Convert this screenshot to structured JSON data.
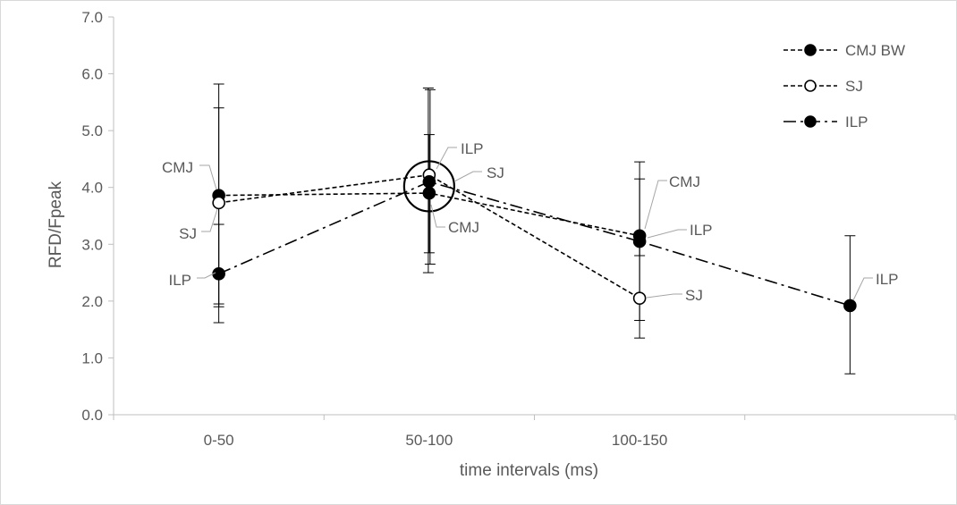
{
  "chart_data": {
    "type": "line",
    "title": "",
    "xlabel": "time intervals (ms)",
    "ylabel": "RFD/Fpeak",
    "categories": [
      "0-50",
      "50-100",
      "100-150",
      ""
    ],
    "ylim": [
      0,
      7
    ],
    "yticks": [
      "0.0",
      "1.0",
      "2.0",
      "3.0",
      "4.0",
      "5.0",
      "6.0",
      "7.0"
    ],
    "series": [
      {
        "name": "CMJ BW",
        "short_label": "CMJ",
        "marker": "filled",
        "line": "dashed",
        "values": [
          3.86,
          3.9,
          3.15,
          null
        ],
        "err_low": [
          1.95,
          2.85,
          2.8,
          null
        ],
        "err_high": [
          5.82,
          4.93,
          4.45,
          null
        ]
      },
      {
        "name": "SJ",
        "short_label": "SJ",
        "marker": "open",
        "line": "dashed",
        "values": [
          3.73,
          4.22,
          2.05,
          null
        ],
        "err_low": [
          1.62,
          2.5,
          1.35,
          null
        ],
        "err_high": [
          5.4,
          5.75,
          3.15,
          null
        ]
      },
      {
        "name": "ILP",
        "short_label": "ILP",
        "marker": "filled",
        "line": "dashdot",
        "values": [
          2.48,
          4.1,
          3.05,
          1.92
        ],
        "err_low": [
          1.9,
          2.65,
          1.66,
          0.72
        ],
        "err_high": [
          3.35,
          5.72,
          4.15,
          3.15
        ]
      }
    ],
    "legend_position": "top-right",
    "grid": false,
    "annotation": "circle highlighting the 50-100 ms cluster"
  }
}
